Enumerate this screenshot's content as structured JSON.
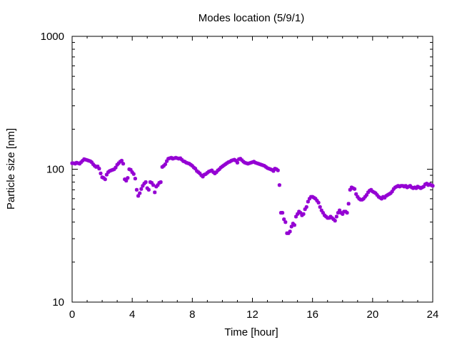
{
  "chart_data": {
    "type": "scatter",
    "title": "Modes location (5/9/1)",
    "xlabel": "Time [hour]",
    "ylabel": "Particle size [nm]",
    "xlim": [
      0,
      24
    ],
    "ylim": [
      10,
      1000
    ],
    "yscale": "log",
    "xticks": [
      0,
      4,
      8,
      12,
      16,
      20,
      24
    ],
    "xtick_labels": [
      "0",
      "4",
      "8",
      "12",
      "16",
      "20",
      "24"
    ],
    "yticks": [
      10,
      100,
      1000
    ],
    "ytick_labels": [
      "10",
      "100",
      "1000"
    ],
    "grid": false,
    "legend": "none",
    "marker_color": "#9400d3",
    "series": [
      {
        "points": [
          [
            0.0,
            111
          ],
          [
            0.1,
            111
          ],
          [
            0.2,
            110
          ],
          [
            0.3,
            112
          ],
          [
            0.4,
            111
          ],
          [
            0.5,
            110
          ],
          [
            0.6,
            113
          ],
          [
            0.7,
            116
          ],
          [
            0.8,
            119
          ],
          [
            0.9,
            118
          ],
          [
            1.0,
            117
          ],
          [
            1.1,
            116
          ],
          [
            1.2,
            115
          ],
          [
            1.3,
            113
          ],
          [
            1.4,
            109
          ],
          [
            1.5,
            106
          ],
          [
            1.6,
            104
          ],
          [
            1.7,
            105
          ],
          [
            1.8,
            101
          ],
          [
            1.9,
            93
          ],
          [
            2.0,
            87
          ],
          [
            2.1,
            86
          ],
          [
            2.2,
            84
          ],
          [
            2.3,
            91
          ],
          [
            2.4,
            95
          ],
          [
            2.5,
            97
          ],
          [
            2.6,
            98
          ],
          [
            2.7,
            99
          ],
          [
            2.8,
            100
          ],
          [
            2.9,
            103
          ],
          [
            3.0,
            108
          ],
          [
            3.1,
            111
          ],
          [
            3.2,
            114
          ],
          [
            3.3,
            116
          ],
          [
            3.4,
            110
          ],
          [
            3.5,
            84
          ],
          [
            3.6,
            82
          ],
          [
            3.7,
            86
          ],
          [
            3.8,
            100
          ],
          [
            3.9,
            99
          ],
          [
            4.0,
            95
          ],
          [
            4.1,
            92
          ],
          [
            4.2,
            85
          ],
          [
            4.3,
            70
          ],
          [
            4.4,
            63
          ],
          [
            4.5,
            66
          ],
          [
            4.6,
            71
          ],
          [
            4.7,
            75
          ],
          [
            4.8,
            78
          ],
          [
            4.9,
            80
          ],
          [
            5.0,
            72
          ],
          [
            5.1,
            70
          ],
          [
            5.2,
            80
          ],
          [
            5.3,
            79
          ],
          [
            5.4,
            76
          ],
          [
            5.5,
            67
          ],
          [
            5.6,
            74
          ],
          [
            5.7,
            76
          ],
          [
            5.8,
            79
          ],
          [
            5.9,
            80
          ],
          [
            6.0,
            104
          ],
          [
            6.1,
            106
          ],
          [
            6.2,
            109
          ],
          [
            6.3,
            115
          ],
          [
            6.4,
            120
          ],
          [
            6.5,
            121
          ],
          [
            6.6,
            122
          ],
          [
            6.7,
            120
          ],
          [
            6.8,
            121
          ],
          [
            6.9,
            122
          ],
          [
            7.0,
            121
          ],
          [
            7.1,
            120
          ],
          [
            7.2,
            121
          ],
          [
            7.3,
            118
          ],
          [
            7.4,
            115
          ],
          [
            7.5,
            114
          ],
          [
            7.6,
            112
          ],
          [
            7.7,
            111
          ],
          [
            7.8,
            110
          ],
          [
            7.9,
            108
          ],
          [
            8.0,
            106
          ],
          [
            8.1,
            103
          ],
          [
            8.2,
            101
          ],
          [
            8.3,
            97
          ],
          [
            8.4,
            95
          ],
          [
            8.5,
            93
          ],
          [
            8.6,
            90
          ],
          [
            8.7,
            88
          ],
          [
            8.8,
            91
          ],
          [
            8.9,
            92
          ],
          [
            9.0,
            94
          ],
          [
            9.1,
            96
          ],
          [
            9.2,
            97
          ],
          [
            9.3,
            98
          ],
          [
            9.4,
            95
          ],
          [
            9.5,
            93
          ],
          [
            9.6,
            95
          ],
          [
            9.7,
            98
          ],
          [
            9.8,
            100
          ],
          [
            9.9,
            103
          ],
          [
            10.0,
            105
          ],
          [
            10.1,
            107
          ],
          [
            10.2,
            109
          ],
          [
            10.3,
            111
          ],
          [
            10.4,
            113
          ],
          [
            10.5,
            114
          ],
          [
            10.6,
            116
          ],
          [
            10.7,
            117
          ],
          [
            10.8,
            118
          ],
          [
            10.9,
            116
          ],
          [
            11.0,
            112
          ],
          [
            11.1,
            119
          ],
          [
            11.2,
            120
          ],
          [
            11.3,
            117
          ],
          [
            11.4,
            114
          ],
          [
            11.5,
            112
          ],
          [
            11.6,
            111
          ],
          [
            11.7,
            110
          ],
          [
            11.8,
            111
          ],
          [
            11.9,
            112
          ],
          [
            12.0,
            113
          ],
          [
            12.1,
            114
          ],
          [
            12.2,
            112
          ],
          [
            12.3,
            111
          ],
          [
            12.4,
            110
          ],
          [
            12.5,
            109
          ],
          [
            12.6,
            108
          ],
          [
            12.7,
            107
          ],
          [
            12.8,
            106
          ],
          [
            12.9,
            104
          ],
          [
            13.0,
            102
          ],
          [
            13.1,
            101
          ],
          [
            13.2,
            100
          ],
          [
            13.3,
            99
          ],
          [
            13.4,
            97
          ],
          [
            13.5,
            101
          ],
          [
            13.6,
            100
          ],
          [
            13.7,
            98
          ],
          [
            13.8,
            76
          ],
          [
            13.9,
            47
          ],
          [
            14.0,
            47
          ],
          [
            14.1,
            42
          ],
          [
            14.2,
            40
          ],
          [
            14.3,
            33
          ],
          [
            14.4,
            33
          ],
          [
            14.5,
            34
          ],
          [
            14.6,
            37
          ],
          [
            14.7,
            39
          ],
          [
            14.8,
            38
          ],
          [
            14.9,
            44
          ],
          [
            15.0,
            46
          ],
          [
            15.1,
            48
          ],
          [
            15.2,
            47
          ],
          [
            15.3,
            45
          ],
          [
            15.4,
            46
          ],
          [
            15.5,
            50
          ],
          [
            15.6,
            52
          ],
          [
            15.7,
            57
          ],
          [
            15.8,
            60
          ],
          [
            15.9,
            62
          ],
          [
            16.0,
            62
          ],
          [
            16.1,
            61
          ],
          [
            16.2,
            60
          ],
          [
            16.3,
            58
          ],
          [
            16.4,
            56
          ],
          [
            16.5,
            52
          ],
          [
            16.6,
            49
          ],
          [
            16.7,
            47
          ],
          [
            16.8,
            45
          ],
          [
            16.9,
            44
          ],
          [
            17.0,
            43
          ],
          [
            17.1,
            43
          ],
          [
            17.2,
            44
          ],
          [
            17.3,
            43
          ],
          [
            17.4,
            42
          ],
          [
            17.5,
            41
          ],
          [
            17.6,
            44
          ],
          [
            17.7,
            47
          ],
          [
            17.8,
            49
          ],
          [
            17.9,
            47
          ],
          [
            18.0,
            46
          ],
          [
            18.1,
            48
          ],
          [
            18.2,
            48
          ],
          [
            18.3,
            47
          ],
          [
            18.4,
            55
          ],
          [
            18.5,
            70
          ],
          [
            18.6,
            73
          ],
          [
            18.7,
            72
          ],
          [
            18.8,
            71
          ],
          [
            18.9,
            65
          ],
          [
            19.0,
            62
          ],
          [
            19.1,
            60
          ],
          [
            19.2,
            59
          ],
          [
            19.3,
            59
          ],
          [
            19.4,
            60
          ],
          [
            19.5,
            62
          ],
          [
            19.6,
            64
          ],
          [
            19.7,
            67
          ],
          [
            19.8,
            69
          ],
          [
            19.9,
            70
          ],
          [
            20.0,
            68
          ],
          [
            20.1,
            67
          ],
          [
            20.2,
            66
          ],
          [
            20.3,
            64
          ],
          [
            20.4,
            62
          ],
          [
            20.5,
            61
          ],
          [
            20.6,
            60
          ],
          [
            20.7,
            62
          ],
          [
            20.8,
            61
          ],
          [
            20.9,
            63
          ],
          [
            21.0,
            64
          ],
          [
            21.1,
            65
          ],
          [
            21.2,
            66
          ],
          [
            21.3,
            68
          ],
          [
            21.4,
            71
          ],
          [
            21.5,
            73
          ],
          [
            21.6,
            74
          ],
          [
            21.7,
            75
          ],
          [
            21.8,
            74
          ],
          [
            21.9,
            75
          ],
          [
            22.0,
            75
          ],
          [
            22.1,
            74
          ],
          [
            22.2,
            75
          ],
          [
            22.3,
            73
          ],
          [
            22.4,
            74
          ],
          [
            22.5,
            75
          ],
          [
            22.6,
            73
          ],
          [
            22.7,
            72
          ],
          [
            22.8,
            73
          ],
          [
            22.9,
            72
          ],
          [
            23.0,
            74
          ],
          [
            23.1,
            73
          ],
          [
            23.2,
            72
          ],
          [
            23.3,
            73
          ],
          [
            23.4,
            74
          ],
          [
            23.5,
            77
          ],
          [
            23.6,
            78
          ],
          [
            23.7,
            76
          ],
          [
            23.8,
            77
          ],
          [
            23.9,
            76
          ],
          [
            24.0,
            75
          ]
        ]
      }
    ]
  }
}
